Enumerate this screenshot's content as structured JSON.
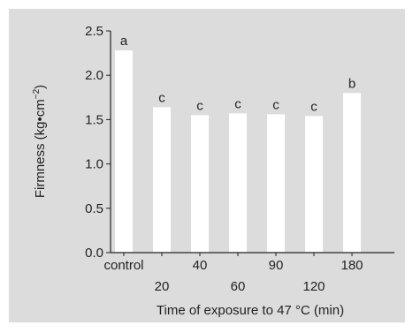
{
  "colors": {
    "panel_background": "#dcdcdc",
    "bar_fill": "#ffffff",
    "axis_color": "#222222",
    "text_color": "#222222"
  },
  "chart_data": {
    "type": "bar",
    "categories": [
      "control",
      "20",
      "40",
      "60",
      "90",
      "120",
      "180"
    ],
    "values": [
      2.28,
      1.64,
      1.55,
      1.57,
      1.56,
      1.54,
      1.8
    ],
    "bar_labels": [
      "a",
      "c",
      "c",
      "c",
      "c",
      "c",
      "b"
    ],
    "xlabel": "Time of exposure to 47 °C (min)",
    "ylabel_main": "Firmness (kg•cm",
    "ylabel_sup": "−2",
    "ylabel_end": ")",
    "ylim": [
      0,
      2.5
    ],
    "yticks": [
      0.0,
      0.5,
      1.0,
      1.5,
      2.0,
      2.5
    ],
    "ytick_labels": [
      "0.0",
      "0.5",
      "1.0",
      "1.5",
      "2.0",
      "2.5"
    ],
    "grid": false,
    "legend": "none"
  }
}
